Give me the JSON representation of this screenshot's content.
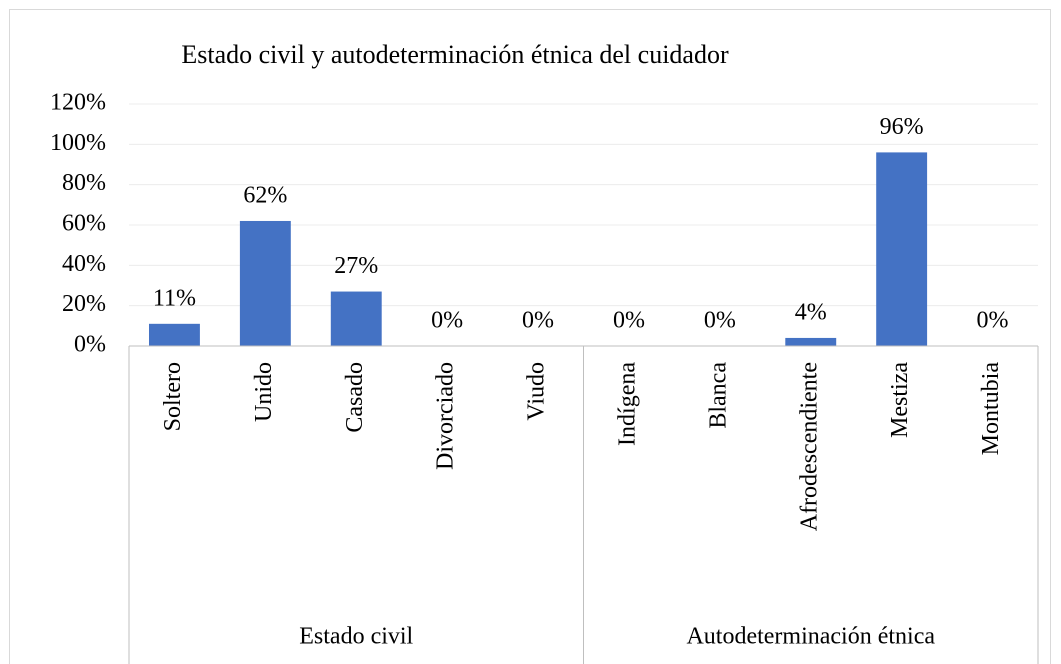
{
  "chart_data": {
    "type": "bar",
    "title": "Estado civil y autodeterminación étnica del cuidador",
    "categories": [
      "Soltero",
      "Unido",
      "Casado",
      "Divorciado",
      "Viudo",
      "Indígena",
      "Blanca",
      "Afrodescendiente",
      "Mestiza",
      "Montubia"
    ],
    "groups": [
      "Estado civil",
      "Autodeterminación étnica"
    ],
    "values": [
      11,
      62,
      27,
      0,
      0,
      0,
      0,
      4,
      96,
      0
    ],
    "value_labels": [
      "11%",
      "62%",
      "27%",
      "0%",
      "0%",
      "0%",
      "0%",
      "4%",
      "96%",
      "0%"
    ],
    "color": "#4472c4",
    "ylim": [
      0,
      120
    ],
    "yticks": [
      {
        "value": 0,
        "label": "0%"
      },
      {
        "value": 20,
        "label": "20%"
      },
      {
        "value": 40,
        "label": "40%"
      },
      {
        "value": 60,
        "label": "60%"
      },
      {
        "value": 80,
        "label": "80%"
      },
      {
        "value": 100,
        "label": "100%"
      },
      {
        "value": 120,
        "label": "120%"
      }
    ],
    "grid": true
  }
}
